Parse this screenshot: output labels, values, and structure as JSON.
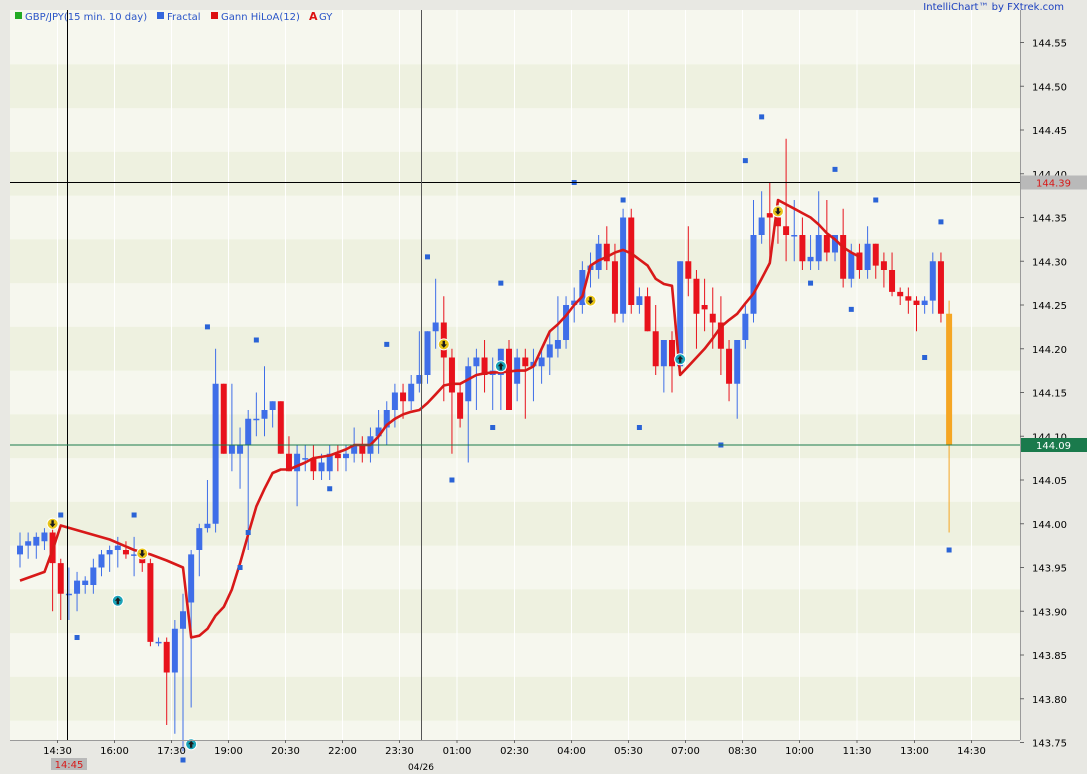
{
  "brand": "IntelliChart™ by FXtrek.com",
  "legend": [
    {
      "label": "GBP/JPY(15 min.  10 day)",
      "color": "#22aa22",
      "icon": "square"
    },
    {
      "label": "Fractal",
      "color": "#3366dd",
      "icon": "square"
    },
    {
      "label": "Gann HiLoA(12)",
      "color": "#dd1111",
      "icon": "square"
    },
    {
      "label": "GY",
      "color": "#dd1111",
      "icon": "letter-A"
    }
  ],
  "crosshair": {
    "time_label": "14:45",
    "price_label": "144.39"
  },
  "last_price_label": "144.09",
  "date_label": "04/26",
  "colors": {
    "up": "#3f6ee8",
    "down": "#e8121c",
    "hilo": "#d81919",
    "fractal": "#2a63d6",
    "band_light": "#f6f7ee",
    "band_dark": "#eef1e0",
    "last_candle": "#f5a623",
    "last_price_line": "#1a7a4c"
  },
  "chart_data": {
    "type": "candlestick",
    "ylim": [
      143.71,
      144.59
    ],
    "yticks": [
      "144.55",
      "144.50",
      "144.45",
      "144.40",
      "144.35",
      "144.30",
      "144.25",
      "144.20",
      "144.15",
      "144.10",
      "144.05",
      "144.00",
      "143.95",
      "143.90",
      "143.85",
      "143.80",
      "143.75"
    ],
    "xticks": [
      "14:30",
      "16:00",
      "17:30",
      "19:00",
      "20:30",
      "22:00",
      "23:30",
      "01:00",
      "02:30",
      "04:00",
      "05:30",
      "07:00",
      "08:30",
      "10:00",
      "11:30",
      "13:00",
      "14:30"
    ],
    "candles": [
      {
        "o": 143.965,
        "h": 143.99,
        "l": 143.95,
        "c": 143.975
      },
      {
        "o": 143.975,
        "h": 143.99,
        "l": 143.96,
        "c": 143.98
      },
      {
        "o": 143.975,
        "h": 143.99,
        "l": 143.96,
        "c": 143.985
      },
      {
        "o": 143.98,
        "h": 143.995,
        "l": 143.97,
        "c": 143.99
      },
      {
        "o": 143.99,
        "h": 144.0,
        "l": 143.9,
        "c": 143.955
      },
      {
        "o": 143.955,
        "h": 143.96,
        "l": 143.89,
        "c": 143.92
      },
      {
        "o": 143.92,
        "h": 143.95,
        "l": 143.89,
        "c": 143.92
      },
      {
        "o": 143.92,
        "h": 143.945,
        "l": 143.9,
        "c": 143.935
      },
      {
        "o": 143.93,
        "h": 143.94,
        "l": 143.92,
        "c": 143.935
      },
      {
        "o": 143.93,
        "h": 143.96,
        "l": 143.92,
        "c": 143.95
      },
      {
        "o": 143.95,
        "h": 143.97,
        "l": 143.94,
        "c": 143.965
      },
      {
        "o": 143.965,
        "h": 143.975,
        "l": 143.945,
        "c": 143.97
      },
      {
        "o": 143.97,
        "h": 143.985,
        "l": 143.95,
        "c": 143.975
      },
      {
        "o": 143.97,
        "h": 143.98,
        "l": 143.96,
        "c": 143.965
      },
      {
        "o": 143.965,
        "h": 143.985,
        "l": 143.94,
        "c": 143.965
      },
      {
        "o": 143.965,
        "h": 143.97,
        "l": 143.945,
        "c": 143.955
      },
      {
        "o": 143.955,
        "h": 143.96,
        "l": 143.86,
        "c": 143.865
      },
      {
        "o": 143.865,
        "h": 143.87,
        "l": 143.86,
        "c": 143.865
      },
      {
        "o": 143.865,
        "h": 143.87,
        "l": 143.77,
        "c": 143.83
      },
      {
        "o": 143.83,
        "h": 143.89,
        "l": 143.76,
        "c": 143.88
      },
      {
        "o": 143.88,
        "h": 143.92,
        "l": 143.74,
        "c": 143.9
      },
      {
        "o": 143.91,
        "h": 143.97,
        "l": 143.79,
        "c": 143.965
      },
      {
        "o": 143.97,
        "h": 144.0,
        "l": 143.94,
        "c": 143.995
      },
      {
        "o": 143.995,
        "h": 144.05,
        "l": 143.99,
        "c": 144.0
      },
      {
        "o": 144.0,
        "h": 144.2,
        "l": 143.99,
        "c": 144.16
      },
      {
        "o": 144.16,
        "h": 144.16,
        "l": 144.08,
        "c": 144.08
      },
      {
        "o": 144.08,
        "h": 144.16,
        "l": 144.06,
        "c": 144.09
      },
      {
        "o": 144.08,
        "h": 144.11,
        "l": 144.04,
        "c": 144.09
      },
      {
        "o": 144.09,
        "h": 144.13,
        "l": 143.97,
        "c": 144.12
      },
      {
        "o": 144.12,
        "h": 144.15,
        "l": 144.1,
        "c": 144.12
      },
      {
        "o": 144.12,
        "h": 144.18,
        "l": 144.1,
        "c": 144.13
      },
      {
        "o": 144.13,
        "h": 144.14,
        "l": 144.11,
        "c": 144.14
      },
      {
        "o": 144.14,
        "h": 144.14,
        "l": 144.08,
        "c": 144.08
      },
      {
        "o": 144.08,
        "h": 144.1,
        "l": 144.06,
        "c": 144.06
      },
      {
        "o": 144.06,
        "h": 144.09,
        "l": 144.02,
        "c": 144.08
      },
      {
        "o": 144.075,
        "h": 144.09,
        "l": 144.06,
        "c": 144.075
      },
      {
        "o": 144.075,
        "h": 144.09,
        "l": 144.05,
        "c": 144.06
      },
      {
        "o": 144.06,
        "h": 144.08,
        "l": 144.05,
        "c": 144.07
      },
      {
        "o": 144.06,
        "h": 144.09,
        "l": 144.05,
        "c": 144.08
      },
      {
        "o": 144.08,
        "h": 144.09,
        "l": 144.06,
        "c": 144.075
      },
      {
        "o": 144.075,
        "h": 144.09,
        "l": 144.06,
        "c": 144.08
      },
      {
        "o": 144.08,
        "h": 144.11,
        "l": 144.07,
        "c": 144.09
      },
      {
        "o": 144.09,
        "h": 144.1,
        "l": 144.07,
        "c": 144.08
      },
      {
        "o": 144.08,
        "h": 144.11,
        "l": 144.07,
        "c": 144.1
      },
      {
        "o": 144.1,
        "h": 144.13,
        "l": 144.08,
        "c": 144.11
      },
      {
        "o": 144.11,
        "h": 144.14,
        "l": 144.09,
        "c": 144.13
      },
      {
        "o": 144.13,
        "h": 144.16,
        "l": 144.11,
        "c": 144.15
      },
      {
        "o": 144.15,
        "h": 144.16,
        "l": 144.12,
        "c": 144.14
      },
      {
        "o": 144.14,
        "h": 144.17,
        "l": 144.13,
        "c": 144.16
      },
      {
        "o": 144.16,
        "h": 144.22,
        "l": 144.15,
        "c": 144.17
      },
      {
        "o": 144.17,
        "h": 144.22,
        "l": 144.16,
        "c": 144.22
      },
      {
        "o": 144.22,
        "h": 144.28,
        "l": 144.2,
        "c": 144.23
      },
      {
        "o": 144.23,
        "h": 144.26,
        "l": 144.14,
        "c": 144.19
      },
      {
        "o": 144.19,
        "h": 144.2,
        "l": 144.08,
        "c": 144.15
      },
      {
        "o": 144.15,
        "h": 144.16,
        "l": 144.11,
        "c": 144.12
      },
      {
        "o": 144.14,
        "h": 144.19,
        "l": 144.07,
        "c": 144.18
      },
      {
        "o": 144.18,
        "h": 144.2,
        "l": 144.13,
        "c": 144.19
      },
      {
        "o": 144.19,
        "h": 144.21,
        "l": 144.15,
        "c": 144.17
      },
      {
        "o": 144.17,
        "h": 144.19,
        "l": 144.13,
        "c": 144.175
      },
      {
        "o": 144.17,
        "h": 144.2,
        "l": 144.13,
        "c": 144.2
      },
      {
        "o": 144.2,
        "h": 144.21,
        "l": 144.13,
        "c": 144.13
      },
      {
        "o": 144.16,
        "h": 144.2,
        "l": 144.14,
        "c": 144.19
      },
      {
        "o": 144.19,
        "h": 144.2,
        "l": 144.12,
        "c": 144.18
      },
      {
        "o": 144.18,
        "h": 144.2,
        "l": 144.14,
        "c": 144.185
      },
      {
        "o": 144.18,
        "h": 144.2,
        "l": 144.16,
        "c": 144.19
      },
      {
        "o": 144.19,
        "h": 144.22,
        "l": 144.17,
        "c": 144.205
      },
      {
        "o": 144.2,
        "h": 144.26,
        "l": 144.19,
        "c": 144.21
      },
      {
        "o": 144.21,
        "h": 144.26,
        "l": 144.2,
        "c": 144.25
      },
      {
        "o": 144.25,
        "h": 144.27,
        "l": 144.23,
        "c": 144.255
      },
      {
        "o": 144.25,
        "h": 144.3,
        "l": 144.24,
        "c": 144.29
      },
      {
        "o": 144.29,
        "h": 144.31,
        "l": 144.27,
        "c": 144.295
      },
      {
        "o": 144.29,
        "h": 144.33,
        "l": 144.28,
        "c": 144.32
      },
      {
        "o": 144.32,
        "h": 144.34,
        "l": 144.29,
        "c": 144.3
      },
      {
        "o": 144.3,
        "h": 144.32,
        "l": 144.23,
        "c": 144.24
      },
      {
        "o": 144.24,
        "h": 144.36,
        "l": 144.23,
        "c": 144.35
      },
      {
        "o": 144.35,
        "h": 144.36,
        "l": 144.24,
        "c": 144.25
      },
      {
        "o": 144.25,
        "h": 144.27,
        "l": 144.24,
        "c": 144.26
      },
      {
        "o": 144.26,
        "h": 144.27,
        "l": 144.22,
        "c": 144.22
      },
      {
        "o": 144.22,
        "h": 144.25,
        "l": 144.17,
        "c": 144.18
      },
      {
        "o": 144.18,
        "h": 144.21,
        "l": 144.15,
        "c": 144.21
      },
      {
        "o": 144.21,
        "h": 144.22,
        "l": 144.15,
        "c": 144.18
      },
      {
        "o": 144.18,
        "h": 144.3,
        "l": 144.17,
        "c": 144.3
      },
      {
        "o": 144.3,
        "h": 144.34,
        "l": 144.26,
        "c": 144.28
      },
      {
        "o": 144.28,
        "h": 144.29,
        "l": 144.2,
        "c": 144.24
      },
      {
        "o": 144.25,
        "h": 144.28,
        "l": 144.22,
        "c": 144.245
      },
      {
        "o": 144.24,
        "h": 144.27,
        "l": 144.2,
        "c": 144.23
      },
      {
        "o": 144.23,
        "h": 144.26,
        "l": 144.17,
        "c": 144.2
      },
      {
        "o": 144.2,
        "h": 144.21,
        "l": 144.14,
        "c": 144.16
      },
      {
        "o": 144.16,
        "h": 144.21,
        "l": 144.12,
        "c": 144.21
      },
      {
        "o": 144.21,
        "h": 144.25,
        "l": 144.2,
        "c": 144.24
      },
      {
        "o": 144.24,
        "h": 144.37,
        "l": 144.23,
        "c": 144.33
      },
      {
        "o": 144.33,
        "h": 144.38,
        "l": 144.32,
        "c": 144.35
      },
      {
        "o": 144.355,
        "h": 144.39,
        "l": 144.3,
        "c": 144.35
      },
      {
        "o": 144.35,
        "h": 144.37,
        "l": 144.32,
        "c": 144.34
      },
      {
        "o": 144.34,
        "h": 144.44,
        "l": 144.3,
        "c": 144.33
      },
      {
        "o": 144.33,
        "h": 144.37,
        "l": 144.3,
        "c": 144.33
      },
      {
        "o": 144.33,
        "h": 144.35,
        "l": 144.29,
        "c": 144.3
      },
      {
        "o": 144.3,
        "h": 144.33,
        "l": 144.29,
        "c": 144.305
      },
      {
        "o": 144.3,
        "h": 144.38,
        "l": 144.29,
        "c": 144.33
      },
      {
        "o": 144.33,
        "h": 144.37,
        "l": 144.3,
        "c": 144.31
      },
      {
        "o": 144.31,
        "h": 144.33,
        "l": 144.3,
        "c": 144.33
      },
      {
        "o": 144.33,
        "h": 144.36,
        "l": 144.27,
        "c": 144.28
      },
      {
        "o": 144.28,
        "h": 144.32,
        "l": 144.27,
        "c": 144.31
      },
      {
        "o": 144.31,
        "h": 144.32,
        "l": 144.28,
        "c": 144.29
      },
      {
        "o": 144.29,
        "h": 144.34,
        "l": 144.28,
        "c": 144.32
      },
      {
        "o": 144.32,
        "h": 144.32,
        "l": 144.28,
        "c": 144.295
      },
      {
        "o": 144.3,
        "h": 144.31,
        "l": 144.27,
        "c": 144.29
      },
      {
        "o": 144.29,
        "h": 144.31,
        "l": 144.26,
        "c": 144.265
      },
      {
        "o": 144.265,
        "h": 144.27,
        "l": 144.25,
        "c": 144.26
      },
      {
        "o": 144.26,
        "h": 144.27,
        "l": 144.24,
        "c": 144.255
      },
      {
        "o": 144.255,
        "h": 144.26,
        "l": 144.22,
        "c": 144.25
      },
      {
        "o": 144.25,
        "h": 144.26,
        "l": 144.24,
        "c": 144.255
      },
      {
        "o": 144.255,
        "h": 144.31,
        "l": 144.24,
        "c": 144.3
      },
      {
        "o": 144.3,
        "h": 144.31,
        "l": 144.23,
        "c": 144.24
      }
    ],
    "last_candle": {
      "o": 144.24,
      "h": 144.255,
      "l": 143.99,
      "c": 144.09
    },
    "hilo_line": [
      [
        0,
        143.935
      ],
      [
        3,
        143.945
      ],
      [
        4,
        143.97
      ],
      [
        5,
        143.998
      ],
      [
        8,
        143.99
      ],
      [
        11,
        143.982
      ],
      [
        14,
        143.97
      ],
      [
        16,
        143.965
      ],
      [
        18,
        143.958
      ],
      [
        20,
        143.95
      ],
      [
        21,
        143.87
      ],
      [
        22,
        143.872
      ],
      [
        23,
        143.88
      ],
      [
        24,
        143.895
      ],
      [
        25,
        143.905
      ],
      [
        26,
        143.925
      ],
      [
        27,
        143.955
      ],
      [
        28,
        143.988
      ],
      [
        29,
        144.02
      ],
      [
        30,
        144.04
      ],
      [
        31,
        144.058
      ],
      [
        32,
        144.062
      ],
      [
        33,
        144.062
      ],
      [
        34,
        144.066
      ],
      [
        35,
        144.07
      ],
      [
        36,
        144.075
      ],
      [
        38,
        144.078
      ],
      [
        40,
        144.085
      ],
      [
        41,
        144.09
      ],
      [
        42,
        144.09
      ],
      [
        43,
        144.09
      ],
      [
        44,
        144.1
      ],
      [
        45,
        144.113
      ],
      [
        46,
        144.12
      ],
      [
        47,
        144.125
      ],
      [
        48,
        144.128
      ],
      [
        49,
        144.13
      ],
      [
        50,
        144.138
      ],
      [
        51,
        144.148
      ],
      [
        52,
        144.158
      ],
      [
        53,
        144.16
      ],
      [
        54,
        144.16
      ],
      [
        55,
        144.165
      ],
      [
        56,
        144.17
      ],
      [
        57,
        144.172
      ],
      [
        58,
        144.173
      ],
      [
        59,
        144.173
      ],
      [
        60,
        144.174
      ],
      [
        61,
        144.175
      ],
      [
        62,
        144.175
      ],
      [
        63,
        144.18
      ],
      [
        64,
        144.2
      ],
      [
        65,
        144.22
      ],
      [
        66,
        144.228
      ],
      [
        67,
        144.238
      ],
      [
        68,
        144.25
      ],
      [
        69,
        144.26
      ],
      [
        70,
        144.295
      ],
      [
        71,
        144.301
      ],
      [
        72,
        144.305
      ],
      [
        73,
        144.31
      ],
      [
        74,
        144.313
      ],
      [
        75,
        144.309
      ],
      [
        76,
        144.302
      ],
      [
        77,
        144.295
      ],
      [
        78,
        144.28
      ],
      [
        79,
        144.274
      ],
      [
        80,
        144.272
      ],
      [
        81,
        144.17
      ],
      [
        82,
        144.18
      ],
      [
        83,
        144.19
      ],
      [
        84,
        144.2
      ],
      [
        85,
        144.212
      ],
      [
        86,
        144.225
      ],
      [
        87,
        144.233
      ],
      [
        88,
        144.24
      ],
      [
        89,
        144.252
      ],
      [
        90,
        144.263
      ],
      [
        91,
        144.28
      ],
      [
        92,
        144.298
      ],
      [
        93,
        144.37
      ],
      [
        94,
        144.365
      ],
      [
        95,
        144.36
      ],
      [
        96,
        144.355
      ],
      [
        97,
        144.35
      ],
      [
        98,
        144.342
      ],
      [
        99,
        144.332
      ],
      [
        100,
        144.325
      ],
      [
        101,
        144.316
      ],
      [
        102,
        144.31
      ],
      [
        103,
        144.305
      ]
    ],
    "fractals": [
      [
        5,
        144.01
      ],
      [
        14,
        144.01
      ],
      [
        7,
        143.87
      ],
      [
        20,
        143.73
      ],
      [
        23,
        144.225
      ],
      [
        27,
        143.95
      ],
      [
        28,
        143.99
      ],
      [
        29,
        144.21
      ],
      [
        38,
        144.04
      ],
      [
        45,
        144.205
      ],
      [
        50,
        144.305
      ],
      [
        53,
        144.05
      ],
      [
        58,
        144.11
      ],
      [
        59,
        144.275
      ],
      [
        68,
        144.39
      ],
      [
        74,
        144.37
      ],
      [
        76,
        144.11
      ],
      [
        86,
        144.09
      ],
      [
        89,
        144.415
      ],
      [
        91,
        144.465
      ],
      [
        97,
        144.275
      ],
      [
        100,
        144.405
      ],
      [
        102,
        144.245
      ],
      [
        105,
        144.37
      ],
      [
        111,
        144.19
      ],
      [
        113,
        144.345
      ],
      [
        114,
        143.97
      ]
    ],
    "markers": [
      {
        "idx": 4,
        "price": 144.0,
        "dir": "down"
      },
      {
        "idx": 12,
        "price": 143.912,
        "dir": "up"
      },
      {
        "idx": 15,
        "price": 143.966,
        "dir": "down"
      },
      {
        "idx": 21,
        "price": 143.748,
        "dir": "up"
      },
      {
        "idx": 52,
        "price": 144.205,
        "dir": "down"
      },
      {
        "idx": 59,
        "price": 144.18,
        "dir": "up"
      },
      {
        "idx": 70,
        "price": 144.255,
        "dir": "down"
      },
      {
        "idx": 81,
        "price": 144.188,
        "dir": "up"
      },
      {
        "idx": 93,
        "price": 144.357,
        "dir": "down"
      }
    ],
    "last_price": 144.09,
    "crosshair_price": 144.39
  }
}
